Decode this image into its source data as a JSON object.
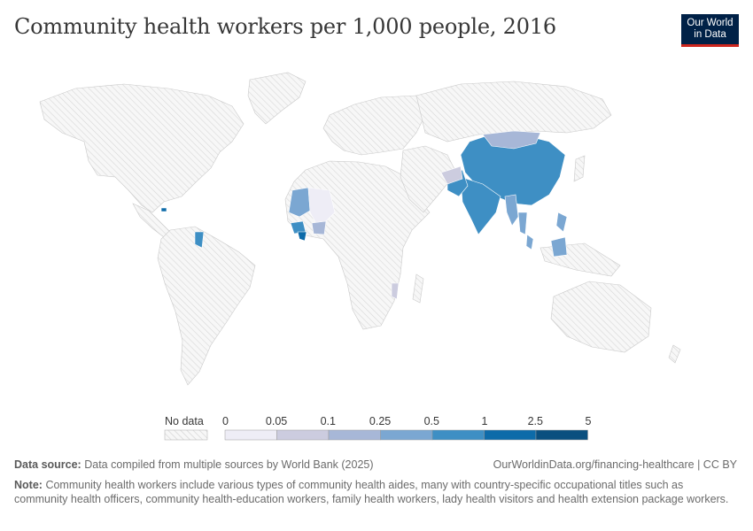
{
  "header": {
    "title": "Community health workers per 1,000 people, 2016",
    "logo_line1": "Our World",
    "logo_line2": "in Data"
  },
  "legend": {
    "no_data_label": "No data",
    "ticks": [
      "0",
      "0.05",
      "0.1",
      "0.25",
      "0.5",
      "1",
      "2.5",
      "5"
    ],
    "colors": [
      "#eeedf6",
      "#ccccdf",
      "#a7b7d7",
      "#7ba7d2",
      "#3e8fc4",
      "#0d6ba9",
      "#0a4f7f"
    ],
    "no_data_color": "#f1f1f1"
  },
  "footer": {
    "source_label": "Data source:",
    "source_text": "Data compiled from multiple sources by World Bank (2025)",
    "url": "OurWorldinData.org/financing-healthcare | CC BY",
    "note_label": "Note:",
    "note_text": "Community health workers include various types of community health aides, many with country-specific occupational titles such as community health officers, community health-education workers, family health workers, lady health visitors and health extension package workers."
  }
}
